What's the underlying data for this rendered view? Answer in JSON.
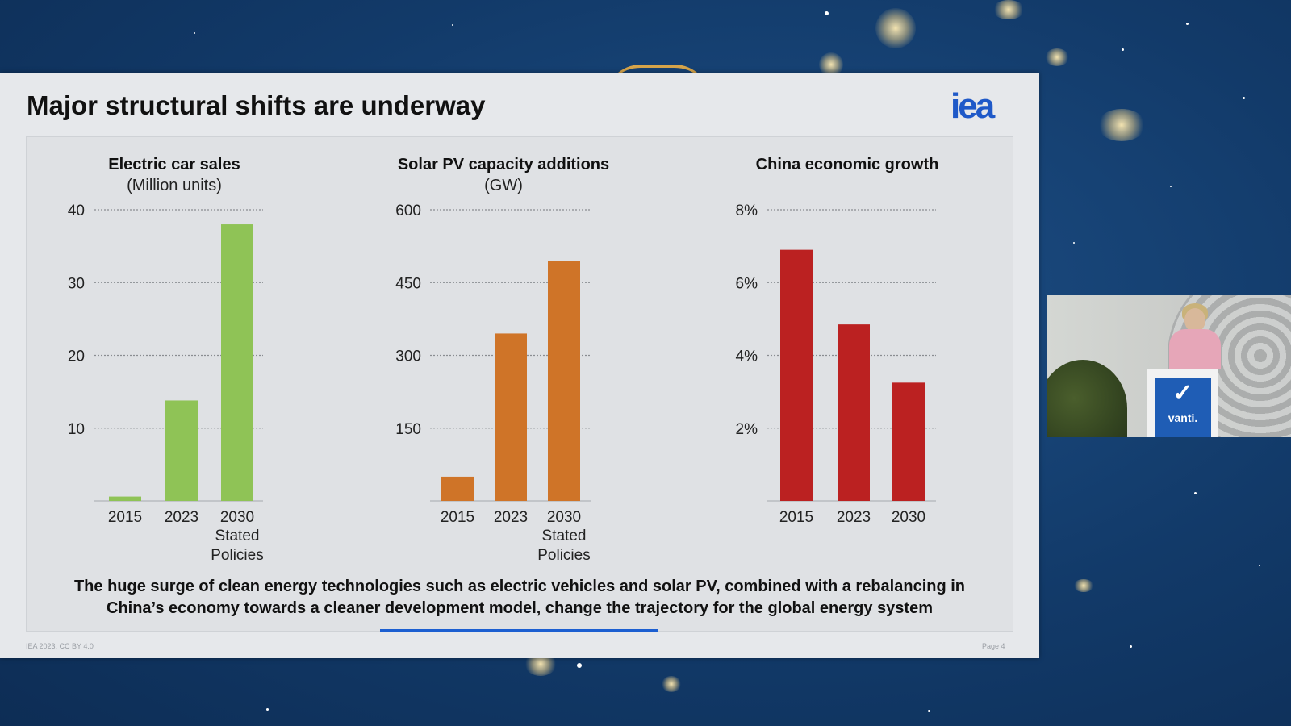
{
  "slide": {
    "title": "Major structural shifts are underway",
    "logo": "iea",
    "caption_line1": "The huge surge of clean energy technologies such as electric vehicles and solar PV, combined with a rebalancing in",
    "caption_line2": "China’s economy towards a cleaner development model, change the trajectory for the global energy system",
    "footer_left": "IEA 2023. CC BY 4.0",
    "footer_right": "Page 4",
    "progress_fraction": 0.27
  },
  "podium": {
    "brand": "vanti."
  },
  "colors": {
    "ev": "#8fc356",
    "solar": "#cf7428",
    "china": "#bb2121",
    "background": "#123a69",
    "accent": "#1c5fd1"
  },
  "chart_data": [
    {
      "type": "bar",
      "title": "Electric car sales",
      "subtitle": "(Million units)",
      "categories": [
        "2015",
        "2023",
        "2030"
      ],
      "category_sublabels": [
        "",
        "",
        "Stated\nPolicies"
      ],
      "values": [
        0.6,
        13.8,
        38
      ],
      "ylim": [
        0,
        40
      ],
      "yticks": [
        10,
        20,
        30,
        40
      ],
      "ytick_labels": [
        "10",
        "20",
        "30",
        "40"
      ],
      "grid": true
    },
    {
      "type": "bar",
      "title": "Solar PV capacity additions",
      "subtitle": "(GW)",
      "categories": [
        "2015",
        "2023",
        "2030"
      ],
      "category_sublabels": [
        "",
        "",
        "Stated\nPolicies"
      ],
      "values": [
        50,
        345,
        495
      ],
      "ylim": [
        0,
        600
      ],
      "yticks": [
        150,
        300,
        450,
        600
      ],
      "ytick_labels": [
        "150",
        "300",
        "450",
        "600"
      ],
      "grid": true
    },
    {
      "type": "bar",
      "title": "China economic growth",
      "subtitle": "",
      "categories": [
        "2015",
        "2023",
        "2030"
      ],
      "category_sublabels": [
        "",
        "",
        ""
      ],
      "values": [
        6.9,
        4.85,
        3.25
      ],
      "ylim": [
        0,
        8
      ],
      "yticks": [
        2,
        4,
        6,
        8
      ],
      "ytick_labels": [
        "2%",
        "4%",
        "6%",
        "8%"
      ],
      "grid": true
    }
  ]
}
